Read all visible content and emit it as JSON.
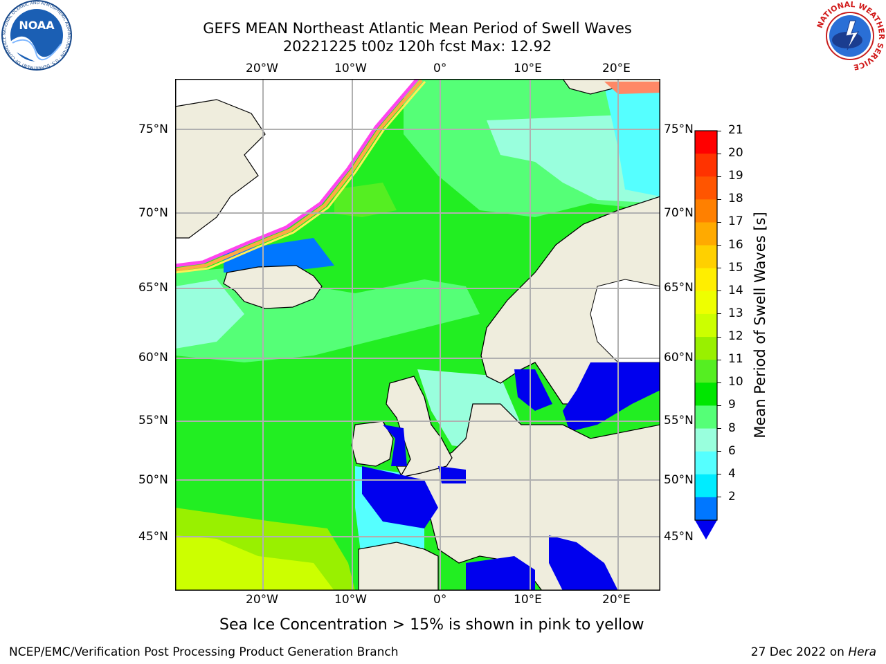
{
  "title": {
    "line1": "GEFS MEAN Northeast Atlantic Mean Period of Swell Waves",
    "line2": "20221225 t00z 120h fcst   Max: 12.92"
  },
  "logos": {
    "left": {
      "name": "noaa-logo",
      "text": "NOAA",
      "ring_text": "NATIONAL OCEANIC AND ATMOSPHERIC ADMINISTRATION · U.S. DEPARTMENT OF COMMERCE"
    },
    "right": {
      "name": "nws-logo",
      "ring_text": "NATIONAL WEATHER SERVICE"
    }
  },
  "map": {
    "lon_labels": [
      "20°W",
      "10°W",
      "0°",
      "10°E",
      "20°E"
    ],
    "lat_labels": [
      "75°N",
      "70°N",
      "65°N",
      "60°N",
      "55°N",
      "50°N",
      "45°N"
    ],
    "land_color": "#efeddd",
    "ice_colors": [
      "#ff44ee",
      "#ffaa44",
      "#ffee55"
    ],
    "grid_color": "#b0b0b0"
  },
  "colorbar": {
    "label": "Mean Period of Swell Waves [s]",
    "ticks": [
      "21",
      "20",
      "19",
      "18",
      "17",
      "16",
      "15",
      "14",
      "13",
      "12",
      "11",
      "10",
      "9",
      "8",
      "6",
      "4",
      "2"
    ],
    "colors": [
      "#ff0000",
      "#ff3300",
      "#ff5500",
      "#ff8000",
      "#ffaa00",
      "#ffd000",
      "#ffee00",
      "#eeff00",
      "#ccff00",
      "#99f000",
      "#55ee22",
      "#00e600",
      "#55ff77",
      "#99ffdd",
      "#55ffff",
      "#00ecff",
      "#0077ff"
    ],
    "extend_color": "#0000ee"
  },
  "caption": "Sea Ice Concentration > 15% is shown in pink to yellow",
  "footer": {
    "left": "NCEP/EMC/Verification Post Processing Product Generation Branch",
    "right_date": "27 Dec 2022 on ",
    "right_host": "Hera"
  }
}
